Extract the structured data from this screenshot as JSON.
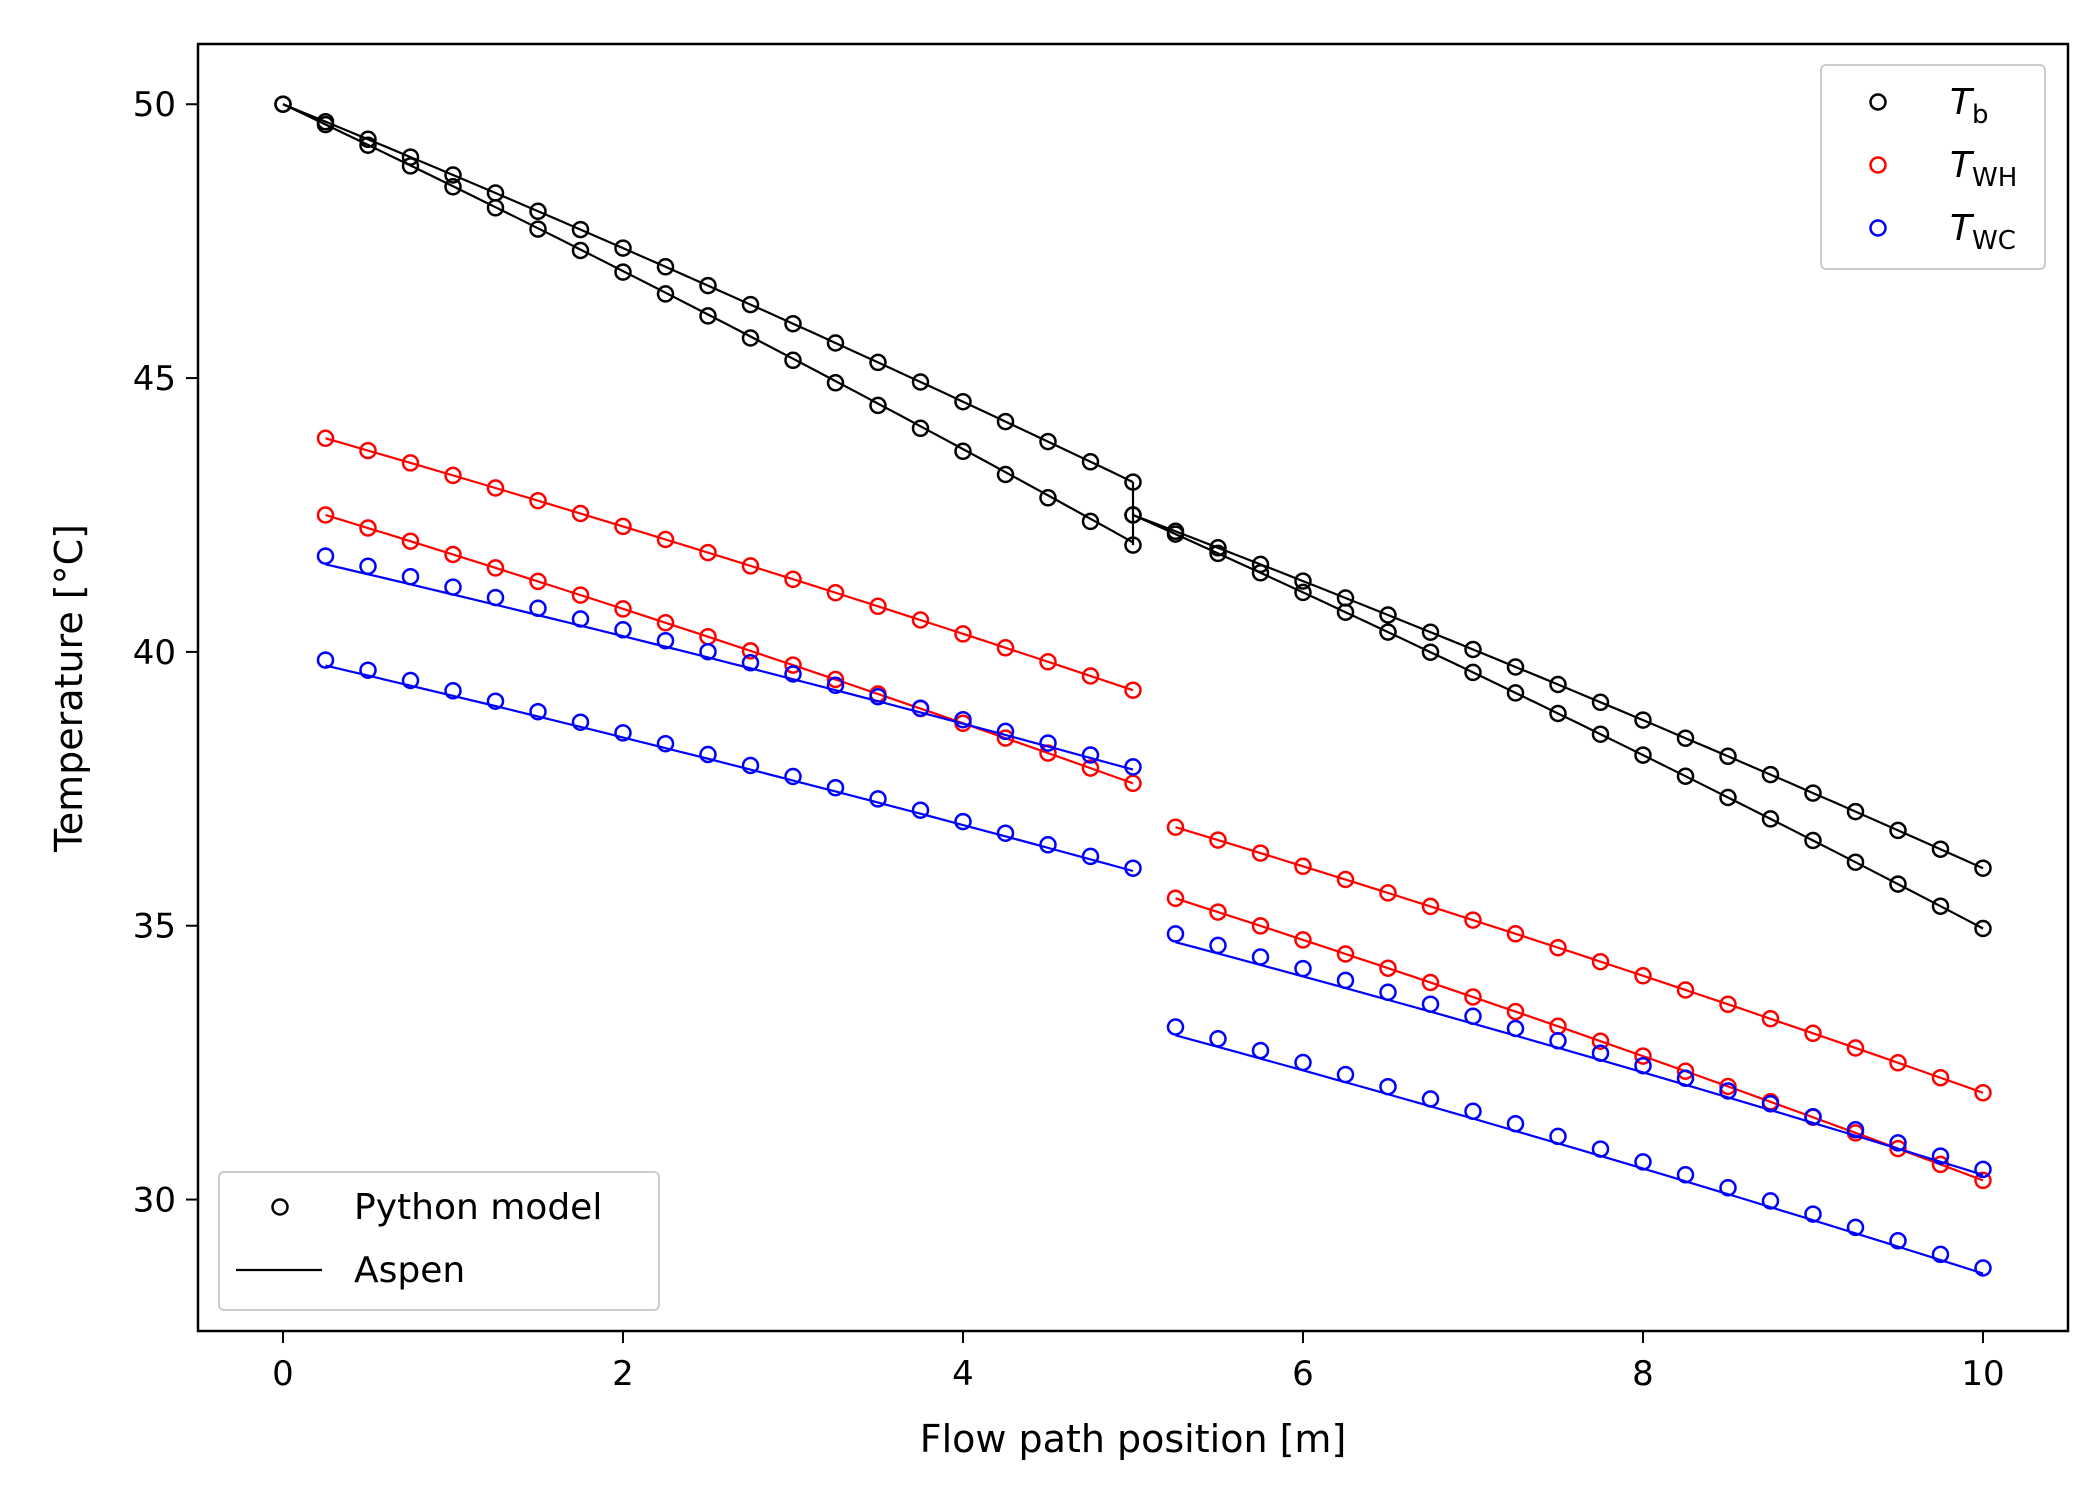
{
  "chart_data": {
    "type": "line",
    "xlabel": "Flow path position [m]",
    "ylabel": "Temperature [°C]",
    "xlim": [
      -0.5,
      10.5
    ],
    "ylim": [
      27.6,
      51.1
    ],
    "xticks": [
      "0",
      "2",
      "4",
      "6",
      "8",
      "10"
    ],
    "yticks": [
      "30",
      "35",
      "40",
      "45",
      "50"
    ],
    "grid": false,
    "legend_series": {
      "placement": "top-right",
      "entries": [
        {
          "label_main": "T",
          "label_sub": "b",
          "color": "#000000",
          "marker": "circle"
        },
        {
          "label_main": "T",
          "label_sub": "WH",
          "color": "#ff0000",
          "marker": "circle"
        },
        {
          "label_main": "T",
          "label_sub": "WC",
          "color": "#0000ff",
          "marker": "circle"
        }
      ]
    },
    "legend_style": {
      "placement": "bottom-left",
      "entries": [
        {
          "label": "Python model",
          "marker": "circle"
        },
        {
          "label": "Aspen",
          "marker": "line"
        }
      ]
    },
    "series": [
      {
        "kind": "Tb",
        "color": "#000000",
        "x_start": 0,
        "x_end": 5,
        "model": {
          "start": 50.0,
          "end": 41.95
        },
        "aspen": {
          "start": 50.0,
          "end": 42.0
        }
      },
      {
        "kind": "Tb",
        "color": "#000000",
        "x_start": 0,
        "x_end": 5,
        "model": {
          "start": 50.0,
          "end": 43.1
        },
        "aspen": {
          "start": 50.0,
          "end": 43.1
        }
      },
      {
        "kind": "Tb",
        "color": "#000000",
        "x_start": 5,
        "x_end": 10,
        "model": {
          "start": 42.5,
          "end": 34.95
        },
        "aspen": {
          "start": 42.5,
          "end": 34.95
        }
      },
      {
        "kind": "Tb",
        "color": "#000000",
        "x_start": 5,
        "x_end": 10,
        "model": {
          "start": 42.5,
          "end": 36.05
        },
        "aspen": {
          "start": 42.5,
          "end": 36.05
        }
      },
      {
        "kind": "TWH",
        "color": "#ff0000",
        "x_start": 0.25,
        "x_end": 5,
        "model": {
          "start": 43.9,
          "end": 39.3
        },
        "aspen": {
          "start": 43.9,
          "end": 39.3
        }
      },
      {
        "kind": "TWH",
        "color": "#ff0000",
        "x_start": 0.25,
        "x_end": 5,
        "model": {
          "start": 42.5,
          "end": 37.6
        },
        "aspen": {
          "start": 42.5,
          "end": 37.6
        }
      },
      {
        "kind": "TWH",
        "color": "#ff0000",
        "x_start": 5.25,
        "x_end": 10,
        "model": {
          "start": 36.8,
          "end": 31.95
        },
        "aspen": {
          "start": 36.8,
          "end": 31.95
        }
      },
      {
        "kind": "TWH",
        "color": "#ff0000",
        "x_start": 5.25,
        "x_end": 10,
        "model": {
          "start": 35.5,
          "end": 30.35
        },
        "aspen": {
          "start": 35.5,
          "end": 30.35
        }
      },
      {
        "kind": "TWC",
        "color": "#0000ff",
        "x_start": 0.25,
        "x_end": 5,
        "model": {
          "start": 41.75,
          "end": 37.9
        },
        "aspen": {
          "start": 41.6,
          "end": 37.85
        }
      },
      {
        "kind": "TWC",
        "color": "#0000ff",
        "x_start": 0.25,
        "x_end": 5,
        "model": {
          "start": 39.85,
          "end": 36.05
        },
        "aspen": {
          "start": 39.75,
          "end": 36.0
        }
      },
      {
        "kind": "TWC",
        "color": "#0000ff",
        "x_start": 5.25,
        "x_end": 10,
        "model": {
          "start": 34.85,
          "end": 30.55
        },
        "aspen": {
          "start": 34.7,
          "end": 30.45
        }
      },
      {
        "kind": "TWC",
        "color": "#0000ff",
        "x_start": 5.25,
        "x_end": 10,
        "model": {
          "start": 33.15,
          "end": 28.75
        },
        "aspen": {
          "start": 33.0,
          "end": 28.65
        }
      }
    ],
    "model_step": 0.25,
    "connector": {
      "x": 5,
      "from": 43.1,
      "to": 41.95,
      "color": "#000000"
    }
  }
}
